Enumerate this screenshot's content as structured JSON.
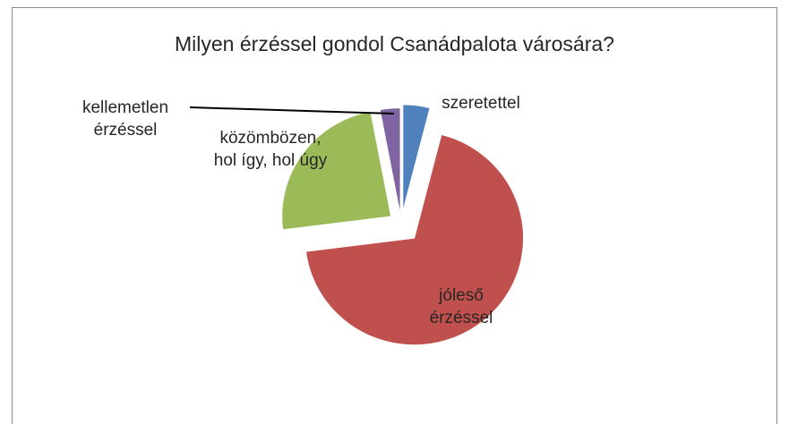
{
  "chart_data": {
    "type": "pie",
    "title": "Milyen érzéssel gondol Csanádpalota városára?",
    "categories": [
      "szeretettel",
      "jóleső érzéssel",
      "közömbözen, hol így, hol úgy",
      "kellemetlen érzéssel"
    ],
    "values": [
      4,
      69,
      24,
      3
    ],
    "colors": [
      "#4f81bd",
      "#c0504d",
      "#9bbb59",
      "#8064a2"
    ]
  }
}
